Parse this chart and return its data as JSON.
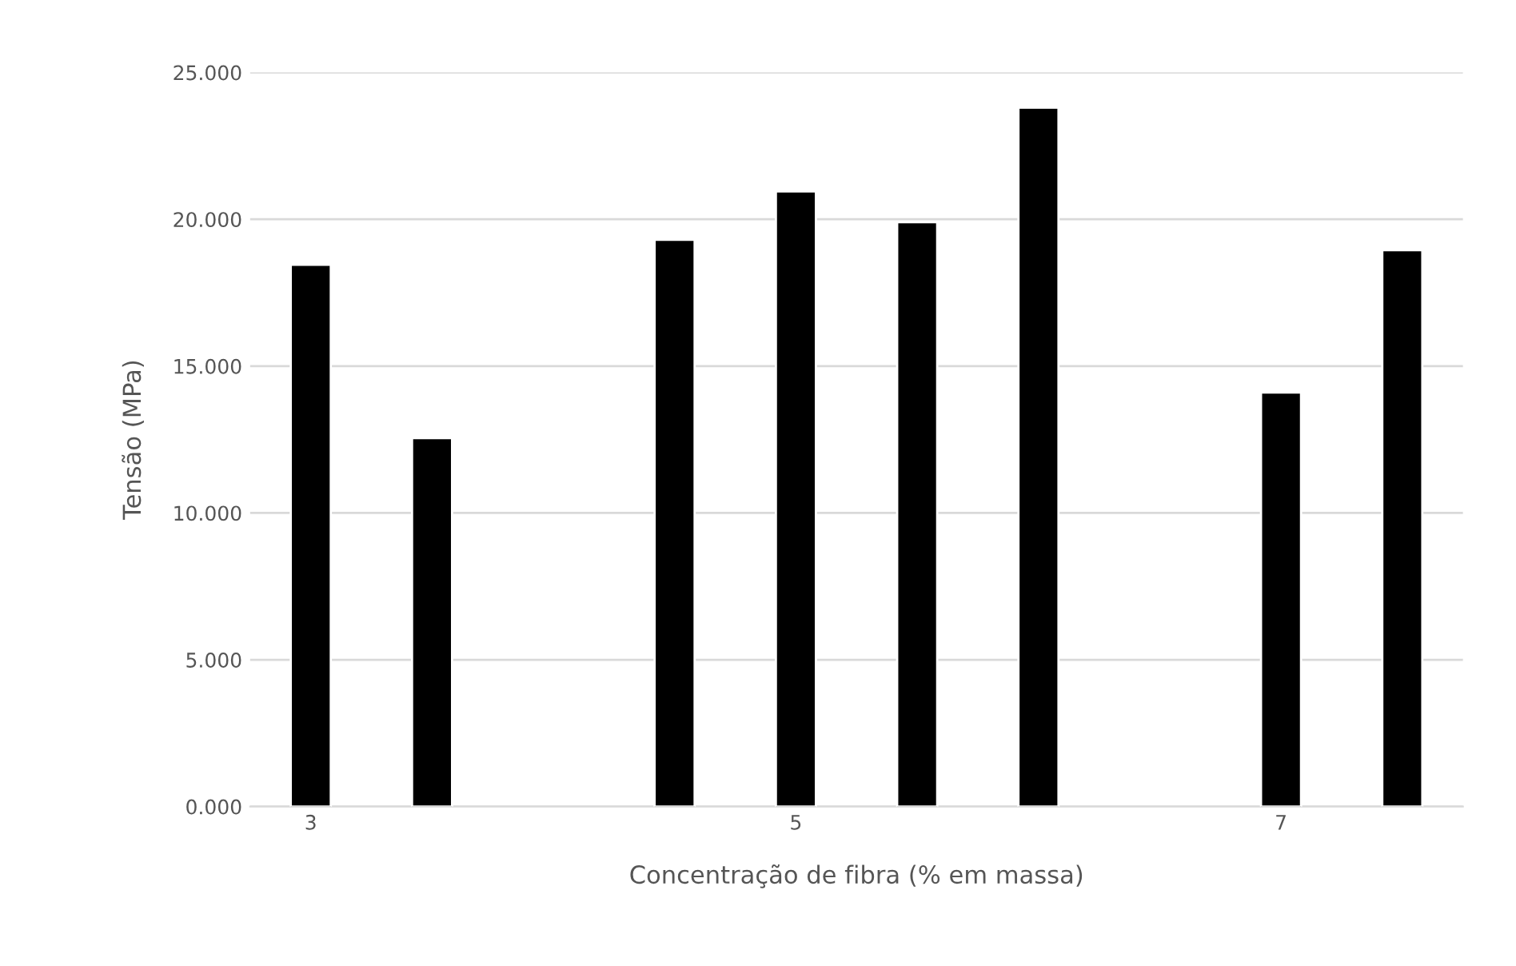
{
  "chart_data": {
    "type": "bar",
    "xlabel": "Concentração de fibra (% em massa)",
    "ylabel": "Tensão (MPa)",
    "categories": [
      "3",
      null,
      null,
      null,
      "5",
      null,
      null,
      null,
      "7",
      null
    ],
    "values": [
      18.45,
      12.55,
      null,
      19.3,
      20.95,
      19.9,
      23.8,
      null,
      14.1,
      18.95
    ],
    "color": "#000000",
    "ylim": [
      0,
      25
    ],
    "yticks": [
      {
        "value": 0,
        "label": "0.000"
      },
      {
        "value": 5,
        "label": "5.000"
      },
      {
        "value": 10,
        "label": "10.000"
      },
      {
        "value": 15,
        "label": "15.000"
      },
      {
        "value": 20,
        "label": "20.000"
      },
      {
        "value": 25,
        "label": "25.000"
      }
    ],
    "grid": "y",
    "legend": false
  }
}
